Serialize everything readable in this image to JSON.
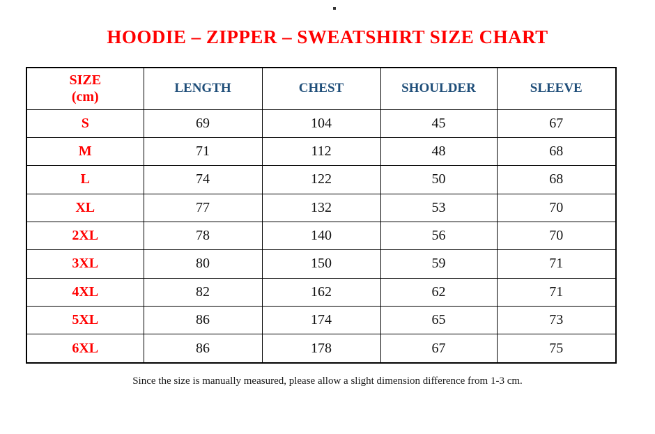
{
  "title": {
    "text": "HOODIE – ZIPPER – SWEATSHIRT SIZE CHART"
  },
  "table": {
    "header": {
      "size_col_line1": "SIZE",
      "size_col_line2": "(cm)",
      "measure_cols": [
        "LENGTH",
        "CHEST",
        "SHOULDER",
        "SLEEVE"
      ]
    },
    "rows": [
      {
        "size": "S",
        "length": "69",
        "chest": "104",
        "shoulder": "45",
        "sleeve": "67"
      },
      {
        "size": "M",
        "length": "71",
        "chest": "112",
        "shoulder": "48",
        "sleeve": "68"
      },
      {
        "size": "L",
        "length": "74",
        "chest": "122",
        "shoulder": "50",
        "sleeve": "68"
      },
      {
        "size": "XL",
        "length": "77",
        "chest": "132",
        "shoulder": "53",
        "sleeve": "70"
      },
      {
        "size": "2XL",
        "length": "78",
        "chest": "140",
        "shoulder": "56",
        "sleeve": "70"
      },
      {
        "size": "3XL",
        "length": "80",
        "chest": "150",
        "shoulder": "59",
        "sleeve": "71"
      },
      {
        "size": "4XL",
        "length": "82",
        "chest": "162",
        "shoulder": "62",
        "sleeve": "71"
      },
      {
        "size": "5XL",
        "length": "86",
        "chest": "174",
        "shoulder": "65",
        "sleeve": "73"
      },
      {
        "size": "6XL",
        "length": "86",
        "chest": "178",
        "shoulder": "67",
        "sleeve": "75"
      }
    ]
  },
  "note": {
    "text": "Since the size is manually measured, please allow a slight dimension difference from 1-3 cm."
  },
  "colors": {
    "accent_red": "#FF0000",
    "header_blue": "#1F4E79",
    "text_black": "#111111",
    "border_black": "#000000",
    "page_bg": "#FFFFFF"
  }
}
